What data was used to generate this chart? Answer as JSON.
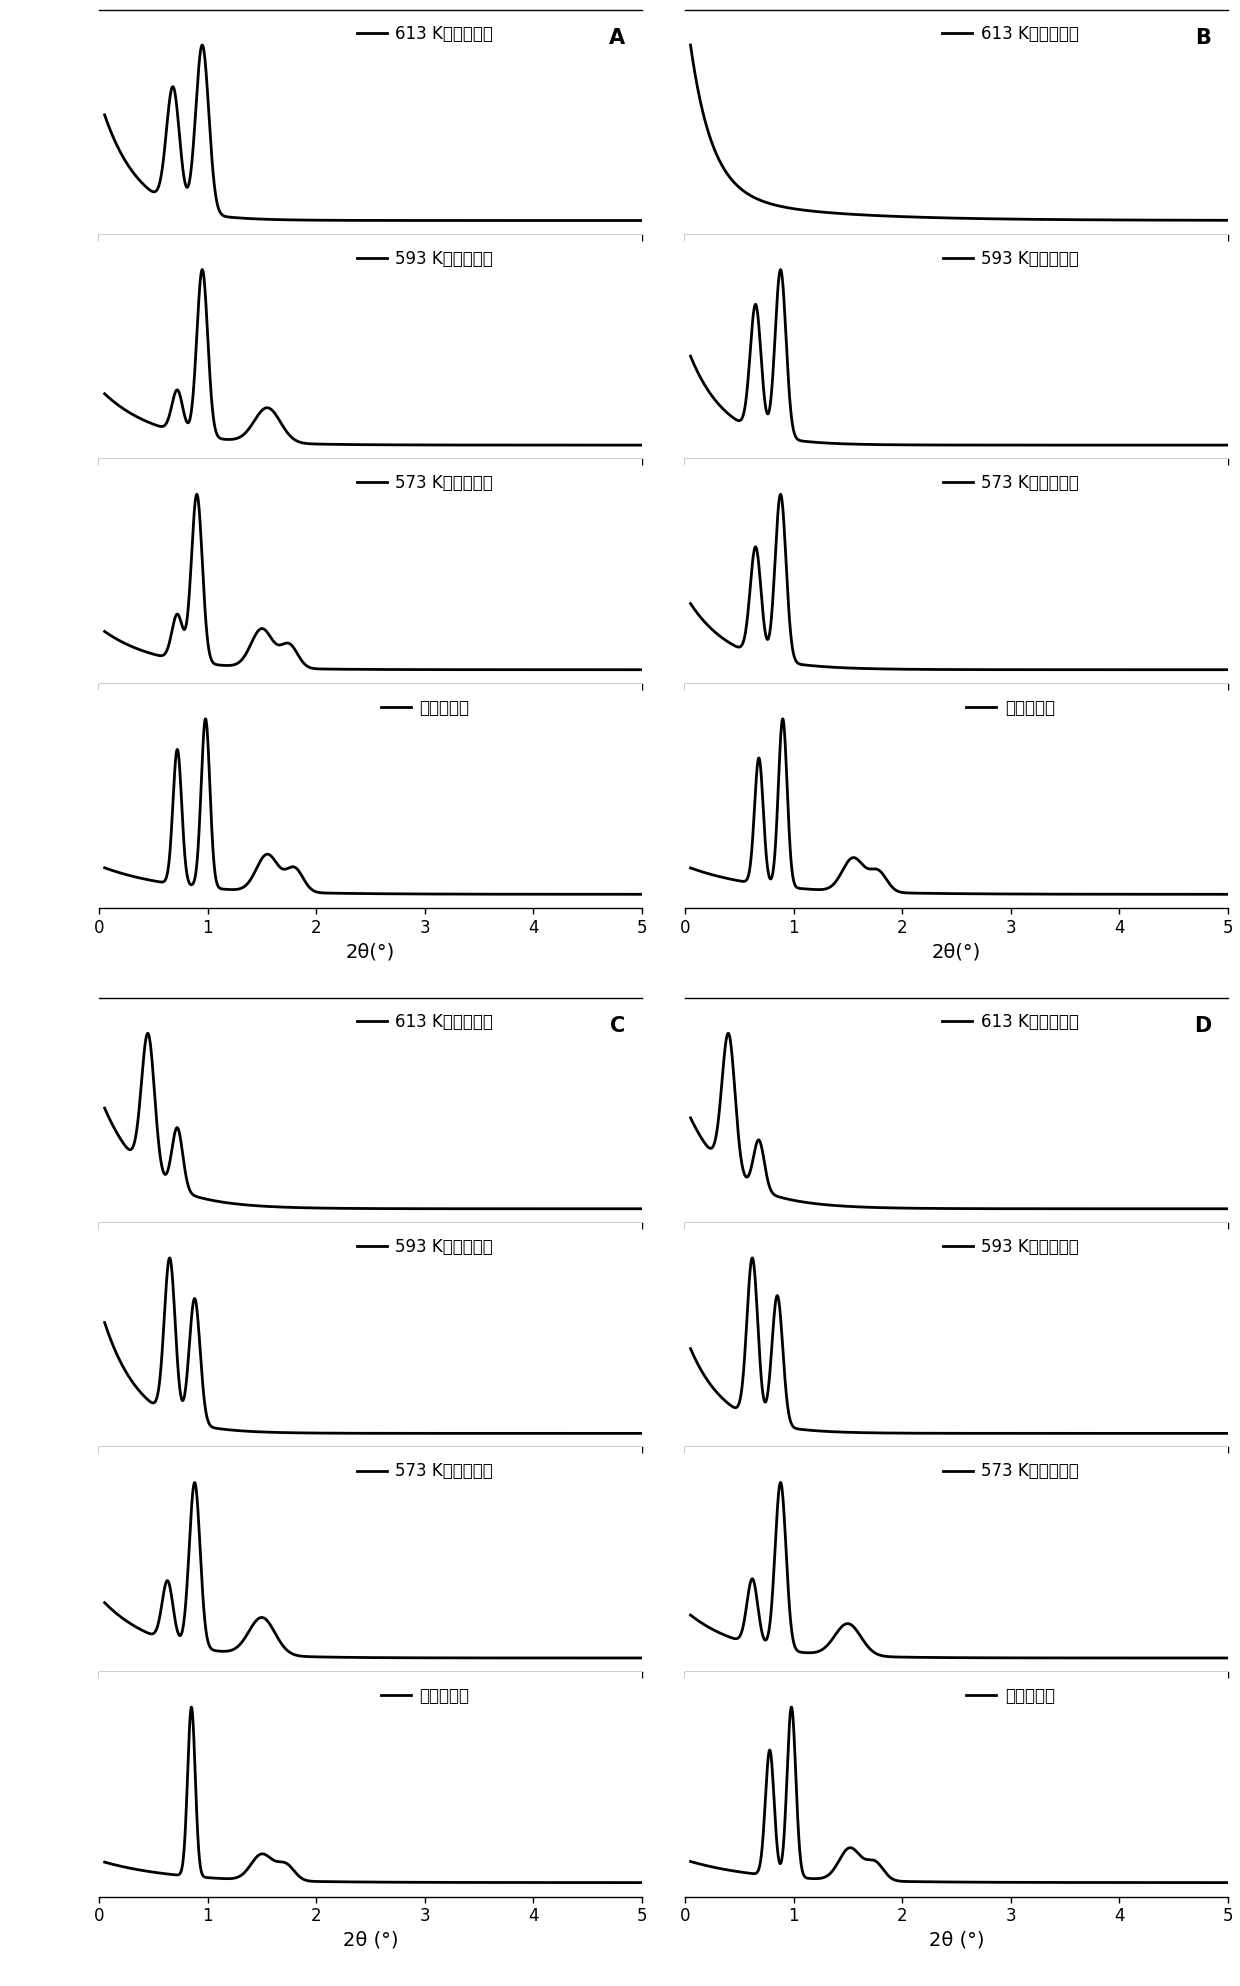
{
  "panel_labels": [
    "A",
    "B",
    "C",
    "D"
  ],
  "curve_labels_613": "613 K下水热测试",
  "curve_labels_593": "593 K下水热测试",
  "curve_labels_573": "573 K下水热测试",
  "curve_labels_pre": "水热测试前",
  "xlabel_AB": "2θ(°)",
  "xlabel_CD": "2θ (°)",
  "xlim": [
    0,
    5
  ],
  "background": "#ffffff",
  "line_color": "#000000",
  "line_width": 2.0,
  "font_size_label": 14,
  "font_size_tick": 12,
  "font_size_panel": 15,
  "font_size_legend": 12
}
